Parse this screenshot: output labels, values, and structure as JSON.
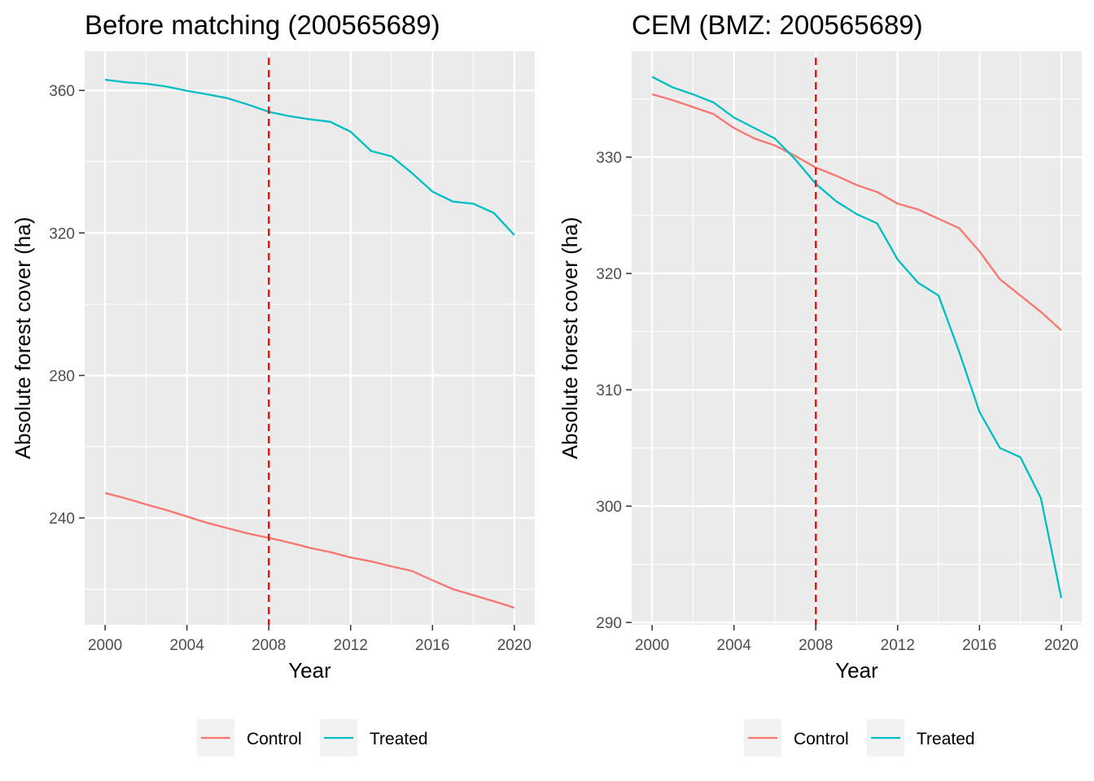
{
  "chart_data": [
    {
      "type": "line",
      "title": "Before matching (200565689)",
      "xlabel": "Year",
      "ylabel": "Absolute forest cover (ha)",
      "xlim": [
        1999,
        2021
      ],
      "ylim": [
        210,
        371
      ],
      "x_ticks": [
        2000,
        2004,
        2008,
        2012,
        2016,
        2020
      ],
      "x_tick_labels": [
        "2000",
        "2004",
        "2008",
        "2012",
        "2016",
        "2020"
      ],
      "y_ticks": [
        240,
        280,
        320,
        360
      ],
      "y_tick_labels": [
        "240",
        "280",
        "320",
        "360"
      ],
      "grid": true,
      "vline": {
        "x": 2008,
        "color": "#ff0000",
        "style": "dashed"
      },
      "x": [
        2000,
        2001,
        2002,
        2003,
        2004,
        2005,
        2006,
        2007,
        2008,
        2009,
        2010,
        2011,
        2012,
        2013,
        2014,
        2015,
        2016,
        2017,
        2018,
        2019,
        2020
      ],
      "series": [
        {
          "name": "Control",
          "color": "#F8766D",
          "values": [
            247.0,
            245.5,
            243.8,
            242.2,
            240.4,
            238.6,
            237.1,
            235.6,
            234.4,
            233.1,
            231.6,
            230.4,
            228.9,
            227.8,
            226.4,
            225.1,
            222.5,
            220.0,
            218.3,
            216.6,
            214.8
          ]
        },
        {
          "name": "Treated",
          "color": "#00BFC4",
          "values": [
            363.0,
            362.3,
            361.9,
            361.1,
            359.9,
            358.9,
            357.8,
            356.0,
            354.0,
            352.8,
            351.9,
            351.2,
            348.4,
            343.0,
            341.5,
            336.8,
            331.6,
            328.8,
            328.2,
            325.6,
            319.4
          ]
        }
      ],
      "legend": {
        "placement": "bottom",
        "entries": [
          "Control",
          "Treated"
        ]
      }
    },
    {
      "type": "line",
      "title": "CEM (BMZ: 200565689)",
      "xlabel": "Year",
      "ylabel": "Absolute forest cover (ha)",
      "xlim": [
        1999,
        2021
      ],
      "ylim": [
        289.8,
        339.1
      ],
      "x_ticks": [
        2000,
        2004,
        2008,
        2012,
        2016,
        2020
      ],
      "x_tick_labels": [
        "2000",
        "2004",
        "2008",
        "2012",
        "2016",
        "2020"
      ],
      "y_ticks": [
        290,
        300,
        310,
        320,
        330
      ],
      "y_tick_labels": [
        "290",
        "300",
        "310",
        "320",
        "330"
      ],
      "grid": true,
      "vline": {
        "x": 2008,
        "color": "#ff0000",
        "style": "dashed"
      },
      "x": [
        2000,
        2001,
        2002,
        2003,
        2004,
        2005,
        2006,
        2007,
        2008,
        2009,
        2010,
        2011,
        2012,
        2013,
        2014,
        2015,
        2016,
        2017,
        2018,
        2019,
        2020
      ],
      "series": [
        {
          "name": "Control",
          "color": "#F8766D",
          "values": [
            335.4,
            334.9,
            334.3,
            333.7,
            332.5,
            331.6,
            331.0,
            330.1,
            329.1,
            328.4,
            327.6,
            327.0,
            326.0,
            325.5,
            324.7,
            323.9,
            321.9,
            319.5,
            318.1,
            316.7,
            315.1
          ]
        },
        {
          "name": "Treated",
          "color": "#00BFC4",
          "values": [
            336.9,
            336.0,
            335.4,
            334.7,
            333.4,
            332.5,
            331.6,
            329.8,
            327.7,
            326.2,
            325.1,
            324.3,
            321.2,
            319.2,
            318.1,
            313.3,
            308.1,
            305.0,
            304.2,
            300.7,
            292.1
          ]
        }
      ],
      "legend": {
        "placement": "bottom",
        "entries": [
          "Control",
          "Treated"
        ]
      }
    }
  ]
}
